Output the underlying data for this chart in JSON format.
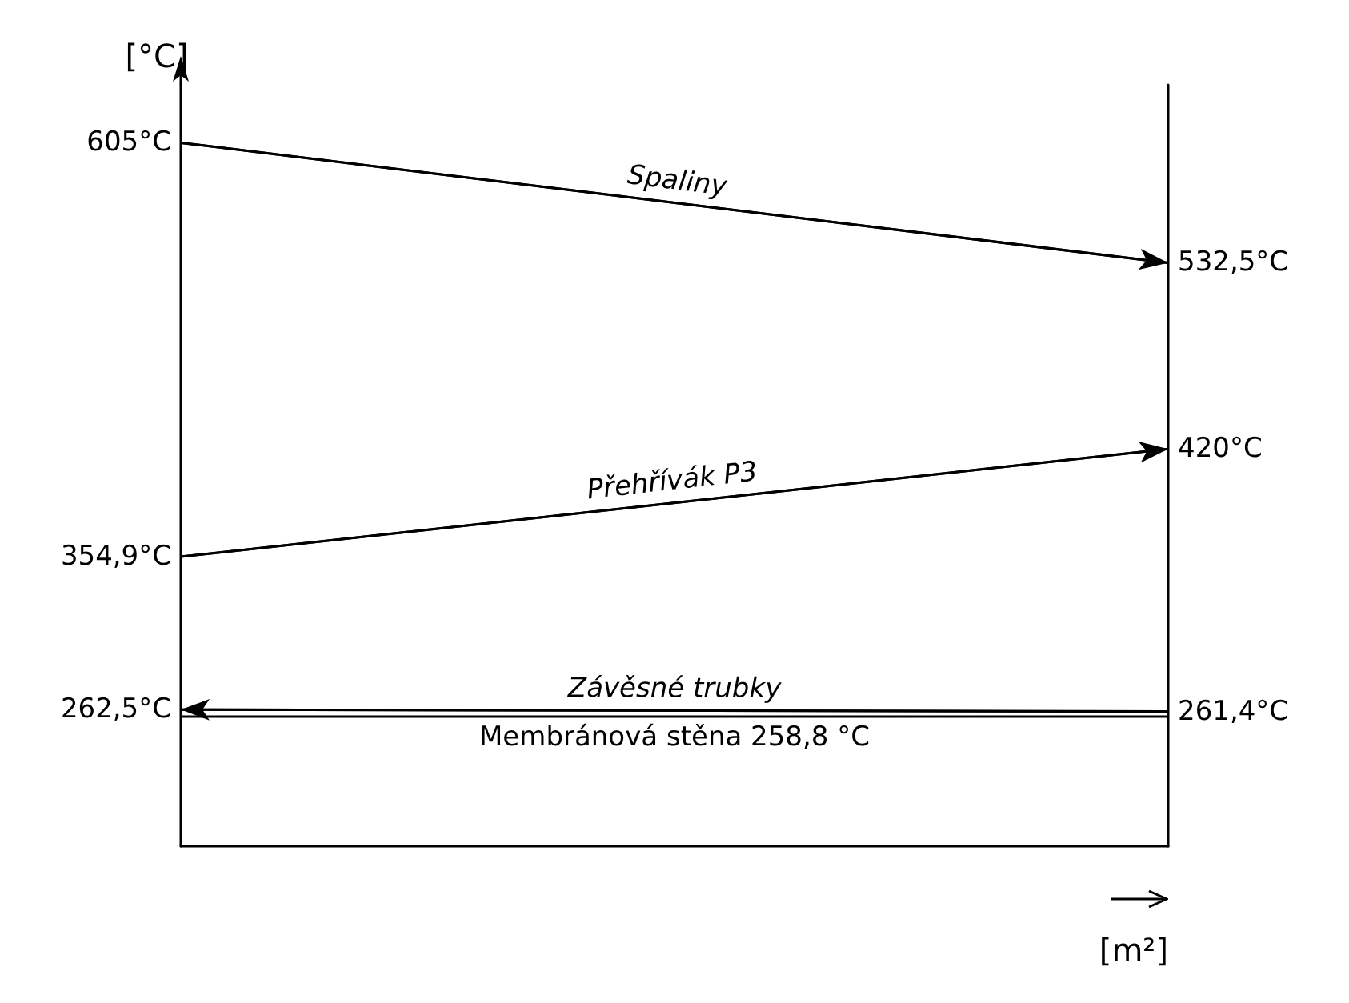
{
  "chart_data": {
    "type": "line",
    "xlabel": "[m²]",
    "ylabel": "[°C]",
    "categories": [
      null,
      null
    ],
    "ylim": [
      180,
      640
    ],
    "tick_labels": false,
    "grid": false,
    "legend": false,
    "line_style": "solid",
    "series": [
      {
        "name": "Spaliny",
        "color": "#000000",
        "values": [
          605,
          532.5
        ],
        "value_labels": [
          "605°C",
          "532,5°C"
        ]
      },
      {
        "name": "Přehřívák P3",
        "color": "#000000",
        "values": [
          354.9,
          420
        ],
        "value_labels": [
          "354,9°C",
          "420°C"
        ]
      },
      {
        "name": "Závěsné trubky",
        "color": "#000000",
        "values": [
          262.5,
          261.4
        ],
        "value_labels": [
          "262,5°C",
          "261,4°C"
        ]
      }
    ],
    "ref_lines": [
      {
        "axis": "y",
        "value": 258.8,
        "label": "Membránová stěna 258,8 °C",
        "color": "#000000"
      }
    ]
  }
}
